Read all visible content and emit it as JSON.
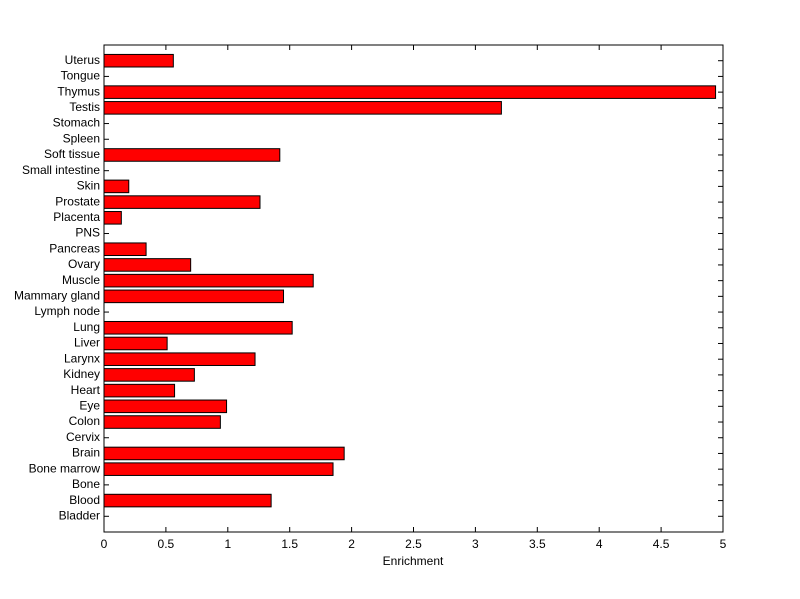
{
  "chart_data": {
    "type": "barh",
    "xlabel": "Enrichment",
    "categories": [
      "Bladder",
      "Blood",
      "Bone",
      "Bone marrow",
      "Brain",
      "Cervix",
      "Colon",
      "Eye",
      "Heart",
      "Kidney",
      "Larynx",
      "Liver",
      "Lung",
      "Lymph node",
      "Mammary gland",
      "Muscle",
      "Ovary",
      "Pancreas",
      "PNS",
      "Placenta",
      "Prostate",
      "Skin",
      "Small intestine",
      "Soft tissue",
      "Spleen",
      "Stomach",
      "Testis",
      "Thymus",
      "Tongue",
      "Uterus"
    ],
    "values": [
      0,
      1.35,
      0,
      1.85,
      1.94,
      0,
      0.94,
      0.99,
      0.57,
      0.73,
      1.22,
      0.51,
      1.52,
      0,
      1.45,
      1.69,
      0.7,
      0.34,
      0,
      0.14,
      1.26,
      0.2,
      0,
      1.42,
      0,
      0,
      3.21,
      4.94,
      0,
      0.56
    ],
    "color": "#ff0000",
    "xlim": [
      0,
      5
    ],
    "xticks": [
      0,
      0.5,
      1,
      1.5,
      2,
      2.5,
      3,
      3.5,
      4,
      4.5,
      5
    ]
  }
}
